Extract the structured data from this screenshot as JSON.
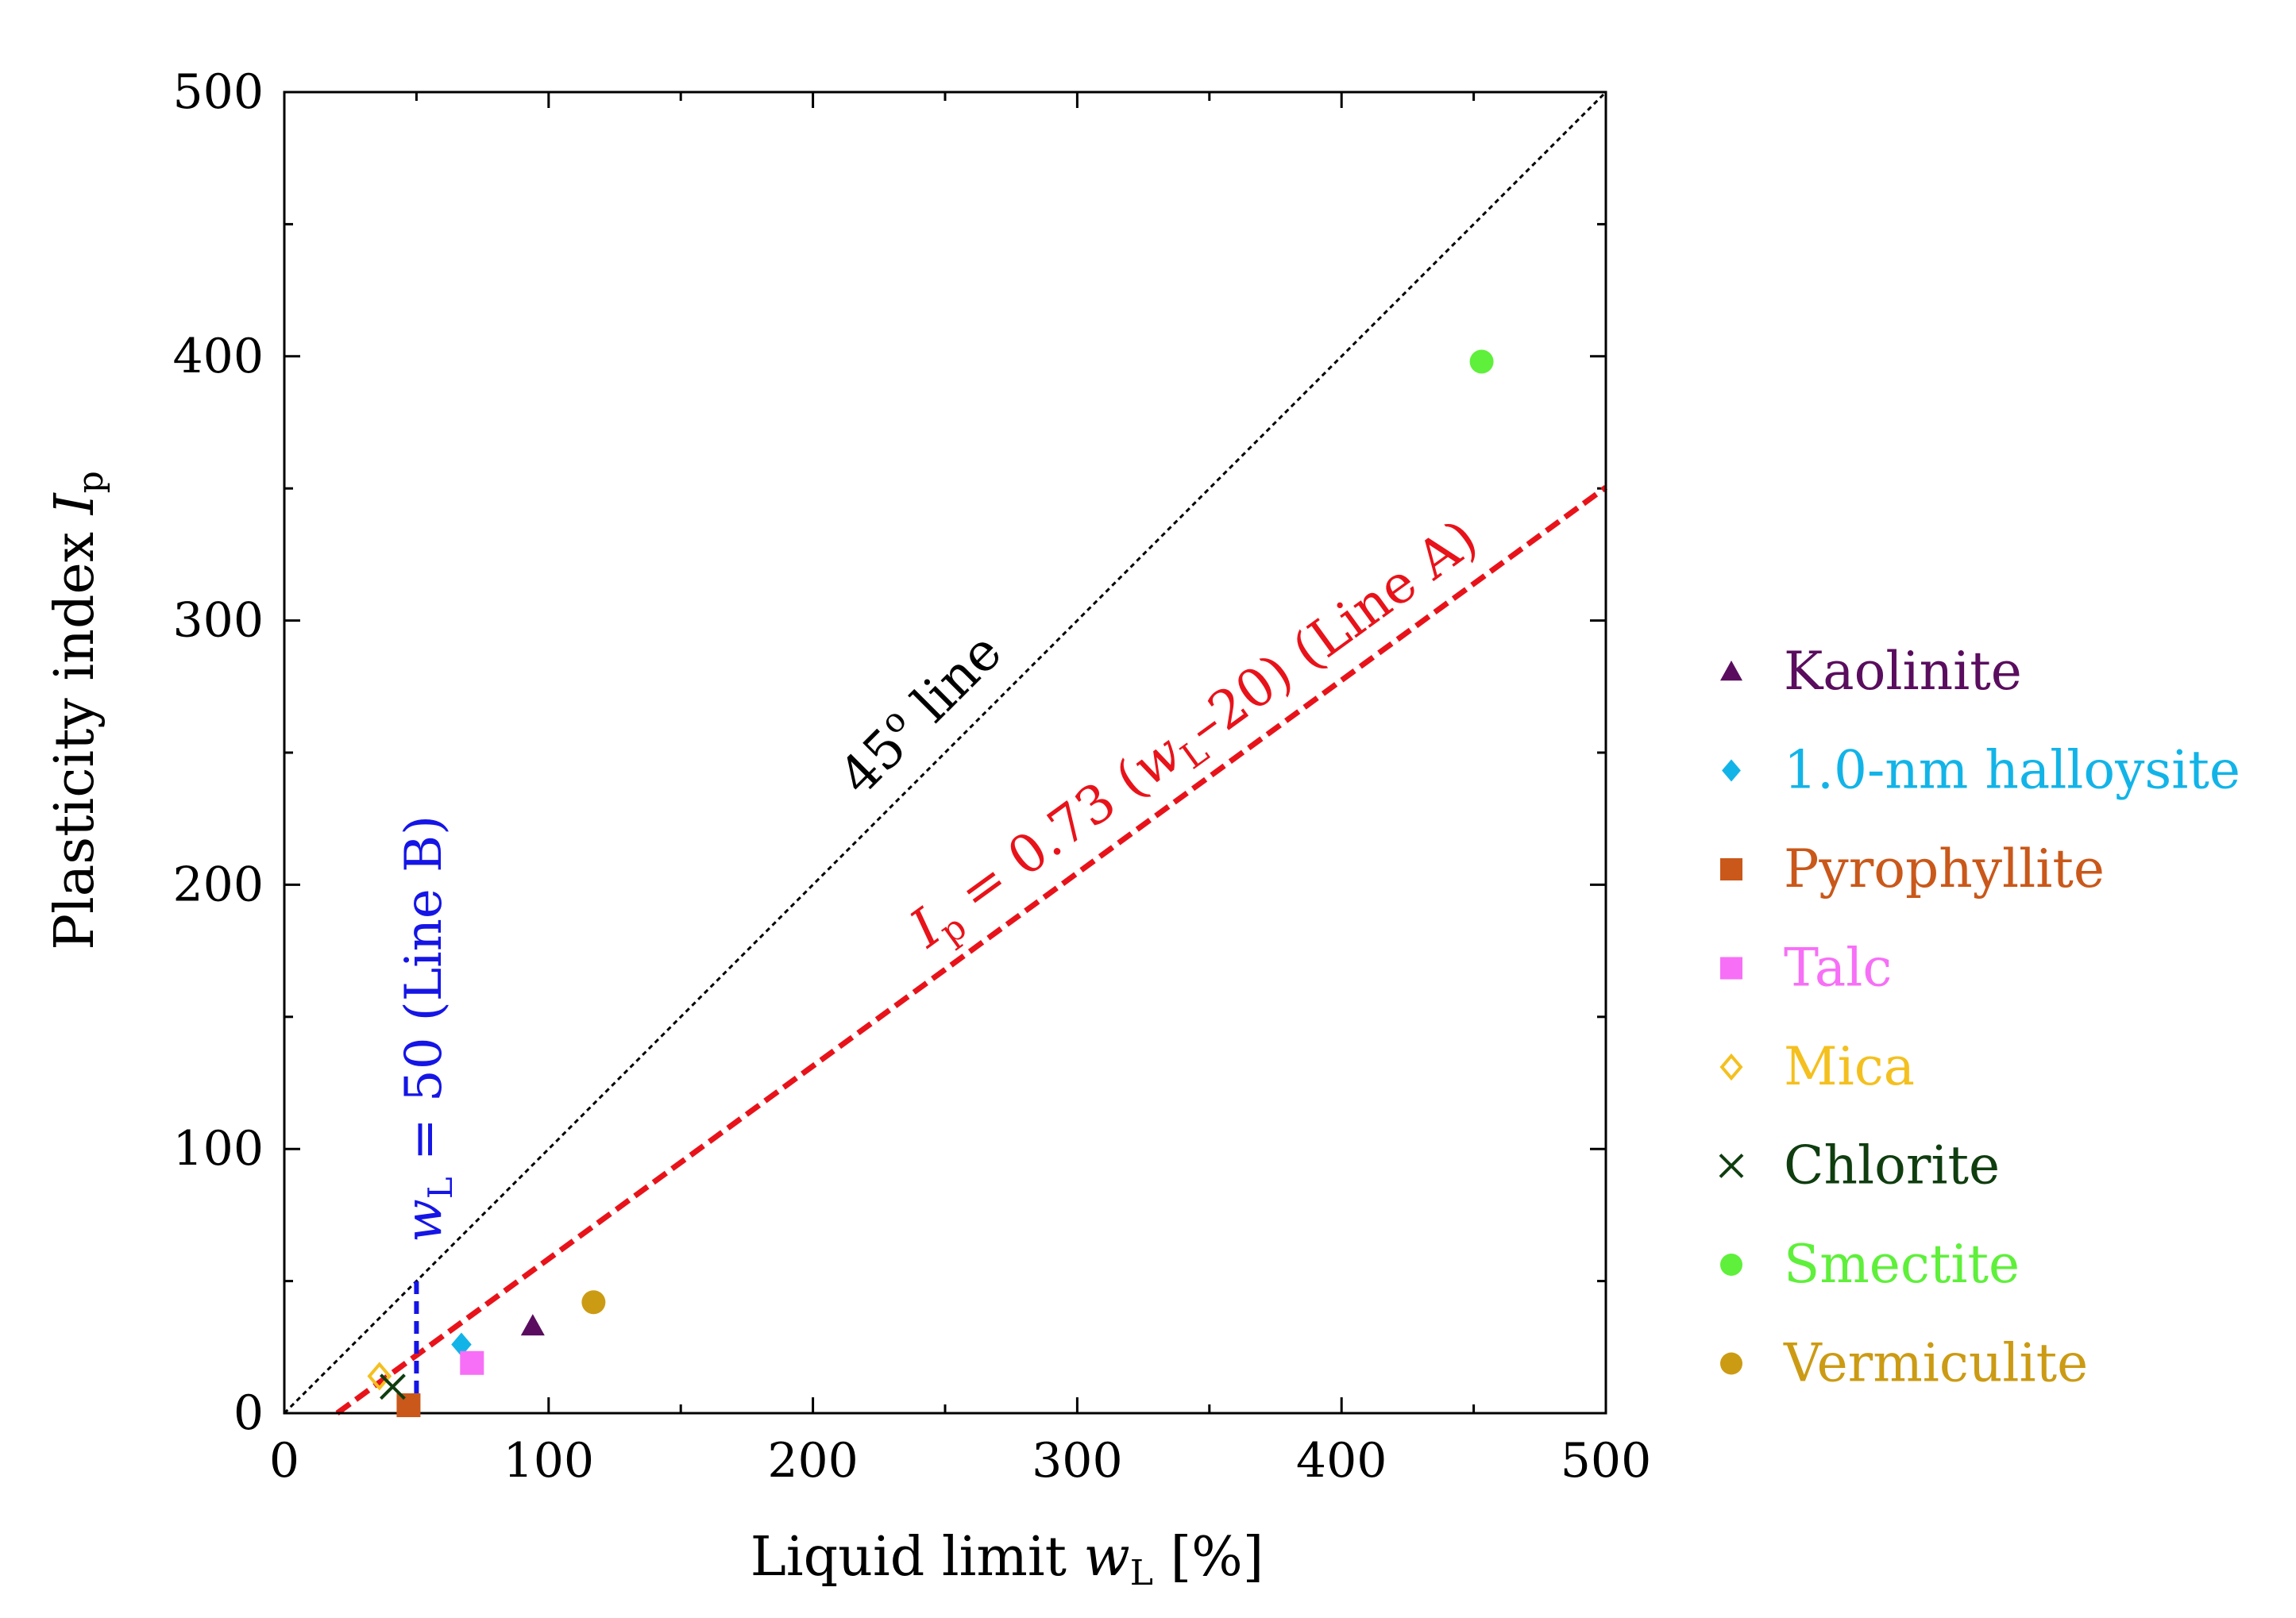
{
  "chart_data": {
    "type": "scatter",
    "xlabel": "Liquid limit",
    "xlabel_symbol": "w",
    "xlabel_subscript": "L",
    "xlabel_unit": "[%]",
    "ylabel": "Plasticity index",
    "ylabel_symbol": "I",
    "ylabel_subscript": "p",
    "xlim": [
      0,
      500
    ],
    "ylim": [
      0,
      500
    ],
    "x_ticks": [
      0,
      100,
      200,
      300,
      400,
      500
    ],
    "y_ticks": [
      0,
      100,
      200,
      300,
      400,
      500
    ],
    "x_tick_labels": [
      "0",
      "100",
      "200",
      "300",
      "400",
      "500"
    ],
    "y_tick_labels": [
      "0",
      "100",
      "200",
      "300",
      "400",
      "500"
    ],
    "minor_tick_step": 50,
    "grid": false,
    "legend_position": "right",
    "series": [
      {
        "name": "Kaolinite",
        "marker": "triangle",
        "color": "#5a0d5e",
        "x": [
          94
        ],
        "y": [
          33
        ]
      },
      {
        "name": "1.0-nm halloysite",
        "marker": "diamond",
        "color": "#12b4e8",
        "x": [
          67
        ],
        "y": [
          26
        ]
      },
      {
        "name": "Pyrophyllite",
        "marker": "square",
        "color": "#c9581a",
        "x": [
          47
        ],
        "y": [
          3
        ]
      },
      {
        "name": "Talc",
        "marker": "square",
        "color": "#f76ff7",
        "x": [
          71
        ],
        "y": [
          19
        ]
      },
      {
        "name": "Mica",
        "marker": "diamond-open",
        "color": "#f4c01f",
        "x": [
          36
        ],
        "y": [
          14
        ]
      },
      {
        "name": "Chlorite",
        "marker": "x",
        "color": "#0f3d0f",
        "x": [
          41
        ],
        "y": [
          10
        ]
      },
      {
        "name": "Smectite",
        "marker": "circle",
        "color": "#5ef03a",
        "x": [
          453
        ],
        "y": [
          398
        ]
      },
      {
        "name": "Vermiculite",
        "marker": "circle",
        "color": "#cc9b14",
        "x": [
          117
        ],
        "y": [
          42
        ]
      }
    ],
    "reference_lines": {
      "line_45": {
        "label_number": "45",
        "label_degree": "o",
        "label_text": "line",
        "from": [
          0,
          0
        ],
        "to": [
          500,
          500
        ],
        "color": "#000000"
      },
      "line_a": {
        "label_lhs": "I",
        "label_lhs_sub": "p",
        "label_mid": " = 0.73 (",
        "label_w": "w",
        "label_w_sub": "L",
        "label_rest": "–20) (Line A)",
        "slope": 0.73,
        "offset": 20,
        "x_from": 20,
        "x_to": 500,
        "color": "#e8131a"
      },
      "line_b": {
        "label_w": "w",
        "label_w_sub": "L",
        "label_rest": " = 50 (Line B)",
        "x": 50,
        "y_from": 0,
        "y_to": 50,
        "color": "#1515e6"
      }
    }
  }
}
